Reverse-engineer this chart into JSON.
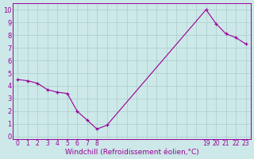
{
  "x_data": [
    0,
    1,
    2,
    3,
    4,
    5,
    6,
    7,
    8,
    9,
    19,
    20,
    21,
    22,
    23
  ],
  "y_data": [
    4.5,
    4.4,
    4.2,
    3.7,
    3.5,
    3.4,
    2.0,
    1.3,
    0.6,
    0.9,
    10.0,
    8.9,
    8.1,
    7.8,
    7.3
  ],
  "line_color": "#990099",
  "bg_color": "#cce8e8",
  "grid_color": "#aacccc",
  "xlabel": "Windchill (Refroidissement éolien,°C)",
  "xtick_vals": [
    0,
    1,
    2,
    3,
    4,
    5,
    6,
    7,
    8,
    19,
    20,
    21,
    22,
    23
  ],
  "ytick_vals": [
    0,
    1,
    2,
    3,
    4,
    5,
    6,
    7,
    8,
    9,
    10
  ],
  "xlim": [
    -0.5,
    23.5
  ],
  "ylim": [
    -0.2,
    10.5
  ]
}
